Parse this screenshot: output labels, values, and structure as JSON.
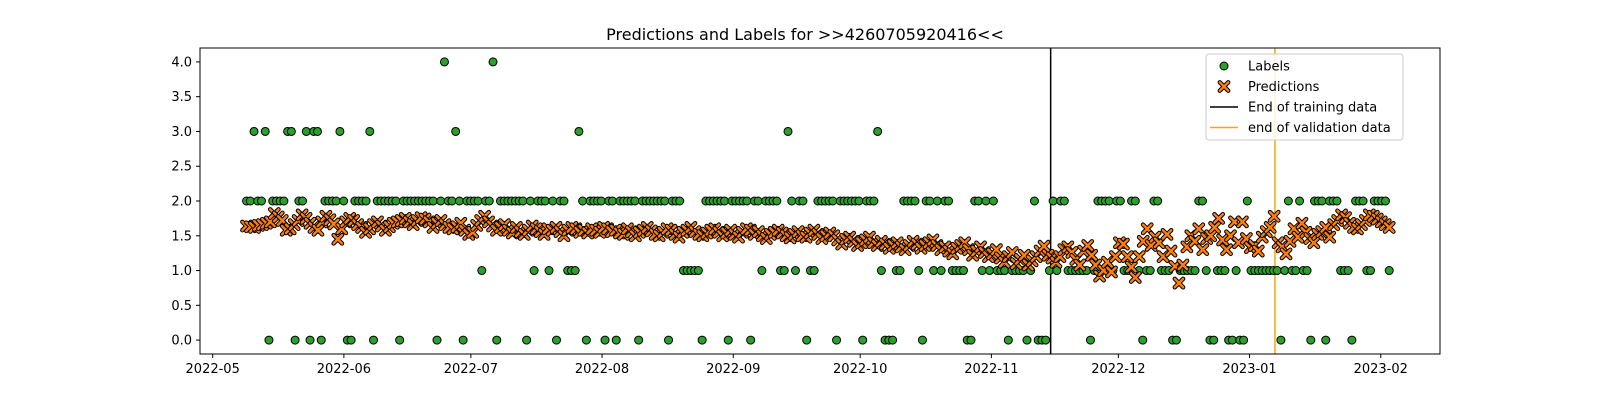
{
  "chart_data": {
    "type": "scatter",
    "title": "Predictions and Labels for >>4260705920416<<",
    "xlabel": "",
    "ylabel": "",
    "xlim": [
      "2022-04-28",
      "2023-02-15"
    ],
    "ylim": [
      -0.2,
      4.2
    ],
    "grid": false,
    "legend_position": "top-right",
    "x_ticks": [
      "2022-05",
      "2022-06",
      "2022-07",
      "2022-08",
      "2022-09",
      "2022-10",
      "2022-11",
      "2022-12",
      "2023-01",
      "2023-02"
    ],
    "y_ticks": [
      "0.0",
      "0.5",
      "1.0",
      "1.5",
      "2.0",
      "2.5",
      "3.0",
      "3.5",
      "4.0"
    ],
    "x_range": [
      "2022-05-09",
      "2023-02-03"
    ],
    "series": [
      {
        "name": "Labels",
        "marker": "circle",
        "color": "#2ca02c",
        "values": [
          2,
          2,
          3,
          2,
          2,
          3,
          0,
          2,
          2,
          2,
          2,
          3,
          3,
          0,
          2,
          2,
          3,
          0,
          3,
          3,
          0,
          2,
          2,
          2,
          2,
          3,
          2,
          0,
          0,
          2,
          2,
          2,
          2,
          3,
          0,
          2,
          2,
          2,
          2,
          2,
          2,
          0,
          2,
          2,
          2,
          2,
          2,
          2,
          2,
          2,
          2,
          0,
          2,
          4,
          2,
          2,
          3,
          2,
          0,
          2,
          2,
          2,
          2,
          1,
          2,
          2,
          4,
          0,
          2,
          2,
          2,
          2,
          2,
          2,
          2,
          0,
          2,
          1,
          2,
          2,
          2,
          1,
          2,
          0,
          2,
          2,
          1,
          1,
          1,
          3,
          2,
          0,
          2,
          2,
          2,
          2,
          0,
          2,
          2,
          0,
          2,
          2,
          2,
          2,
          2,
          0,
          2,
          2,
          2,
          2,
          2,
          2,
          2,
          0,
          2,
          2,
          2,
          1,
          1,
          1,
          1,
          1,
          0,
          2,
          2,
          2,
          2,
          2,
          2,
          0,
          2,
          2,
          2,
          2,
          2,
          0,
          2,
          2,
          1,
          2,
          2,
          2,
          2,
          1,
          1,
          3,
          2,
          1,
          2,
          2,
          0,
          1,
          1,
          2,
          2,
          2,
          2,
          2,
          0,
          2,
          2,
          2,
          2,
          2,
          2,
          0,
          2,
          2,
          2,
          3,
          1,
          0,
          0,
          0,
          1,
          1,
          2,
          2,
          2,
          2,
          1,
          0,
          2,
          2,
          1,
          2,
          1,
          2,
          2,
          1,
          1,
          1,
          1,
          0,
          0,
          2,
          2,
          1,
          2,
          1,
          2,
          1,
          1,
          1,
          0,
          1,
          1,
          1,
          1,
          0,
          1,
          2,
          0,
          0,
          0,
          1,
          2,
          1,
          2,
          2,
          1,
          1,
          1,
          1,
          1,
          1,
          0,
          1,
          2,
          2,
          2,
          2,
          1,
          2,
          2,
          1,
          1,
          2,
          2,
          1,
          0,
          1,
          1,
          2,
          2,
          1,
          1,
          1,
          0,
          0,
          1,
          1,
          1,
          1,
          1,
          2,
          2,
          1,
          0,
          0,
          1,
          1,
          1,
          0,
          0,
          1,
          0,
          0,
          2,
          1,
          1,
          1,
          1,
          1,
          1,
          1,
          1,
          0,
          1,
          2,
          1,
          1,
          2,
          1,
          1,
          0,
          2,
          2,
          2,
          0,
          2,
          2,
          2,
          1,
          1,
          1,
          0,
          2,
          2,
          2,
          1,
          1,
          2,
          2,
          2,
          2,
          1
        ]
      },
      {
        "name": "Predictions",
        "marker": "x",
        "color": "#ff7f0e",
        "values": [
          1.64,
          1.63,
          1.62,
          1.65,
          1.66,
          1.68,
          1.7,
          1.82,
          1.77,
          1.72,
          1.58,
          1.6,
          1.66,
          1.72,
          1.8,
          1.75,
          1.68,
          1.62,
          1.58,
          1.7,
          1.78,
          1.73,
          1.67,
          1.45,
          1.6,
          1.7,
          1.75,
          1.72,
          1.66,
          1.62,
          1.55,
          1.6,
          1.66,
          1.7,
          1.64,
          1.58,
          1.63,
          1.68,
          1.7,
          1.72,
          1.75,
          1.7,
          1.66,
          1.72,
          1.76,
          1.74,
          1.7,
          1.62,
          1.68,
          1.72,
          1.66,
          1.62,
          1.6,
          1.63,
          1.68,
          1.58,
          1.52,
          1.55,
          1.65,
          1.72,
          1.78,
          1.7,
          1.64,
          1.58,
          1.62,
          1.66,
          1.58,
          1.54,
          1.62,
          1.56,
          1.52,
          1.58,
          1.64,
          1.6,
          1.56,
          1.52,
          1.6,
          1.58,
          1.62,
          1.56,
          1.5,
          1.58,
          1.62,
          1.6,
          1.55,
          1.58,
          1.54,
          1.6,
          1.58,
          1.55,
          1.62,
          1.6,
          1.56,
          1.58,
          1.54,
          1.52,
          1.6,
          1.56,
          1.5,
          1.55,
          1.58,
          1.62,
          1.57,
          1.52,
          1.5,
          1.55,
          1.6,
          1.58,
          1.52,
          1.48,
          1.55,
          1.58,
          1.62,
          1.56,
          1.52,
          1.5,
          1.54,
          1.58,
          1.6,
          1.55,
          1.5,
          1.54,
          1.58,
          1.52,
          1.48,
          1.55,
          1.6,
          1.58,
          1.52,
          1.56,
          1.5,
          1.46,
          1.52,
          1.55,
          1.58,
          1.54,
          1.5,
          1.47,
          1.52,
          1.56,
          1.5,
          1.48,
          1.54,
          1.58,
          1.52,
          1.46,
          1.5,
          1.54,
          1.5,
          1.44,
          1.38,
          1.45,
          1.48,
          1.42,
          1.36,
          1.4,
          1.44,
          1.48,
          1.4,
          1.36,
          1.42,
          1.38,
          1.32,
          1.36,
          1.4,
          1.34,
          1.3,
          1.36,
          1.42,
          1.38,
          1.32,
          1.36,
          1.4,
          1.44,
          1.36,
          1.3,
          1.34,
          1.28,
          1.24,
          1.32,
          1.36,
          1.4,
          1.3,
          1.22,
          1.28,
          1.34,
          1.26,
          1.2,
          1.24,
          1.3,
          1.18,
          1.12,
          1.2,
          1.26,
          1.1,
          1.16,
          1.22,
          1.08,
          1.14,
          1.2,
          1.28,
          1.35,
          1.22,
          1.18,
          1.12,
          1.2,
          1.3,
          1.34,
          1.26,
          1.16,
          1.08,
          1.28,
          1.36,
          1.22,
          1.08,
          0.92,
          1.0,
          1.12,
          0.98,
          1.2,
          1.4,
          1.38,
          1.2,
          1.05,
          0.9,
          1.2,
          1.42,
          1.6,
          1.36,
          1.48,
          1.4,
          1.2,
          1.52,
          1.28,
          1.06,
          0.82,
          1.08,
          1.34,
          1.5,
          1.42,
          1.6,
          1.3,
          1.46,
          1.5,
          1.62,
          1.75,
          1.44,
          1.3,
          1.5,
          1.7,
          1.4,
          1.7,
          1.46,
          1.33,
          1.36,
          1.28,
          1.48,
          1.56,
          1.62,
          1.78,
          1.4,
          1.34,
          1.24,
          1.42,
          1.6,
          1.48,
          1.68,
          1.55,
          1.46,
          1.4,
          1.52,
          1.56,
          1.62,
          1.48,
          1.66,
          1.72,
          1.8,
          1.76,
          1.68,
          1.62,
          1.6,
          1.66,
          1.72,
          1.8,
          1.78,
          1.74,
          1.7,
          1.66,
          1.62
        ]
      }
    ],
    "vlines": [
      {
        "name": "End of training data",
        "x": "2022-11-15",
        "color": "#000000"
      },
      {
        "name": "end of validation data",
        "x": "2023-01-07",
        "color": "#ffa500"
      }
    ]
  }
}
